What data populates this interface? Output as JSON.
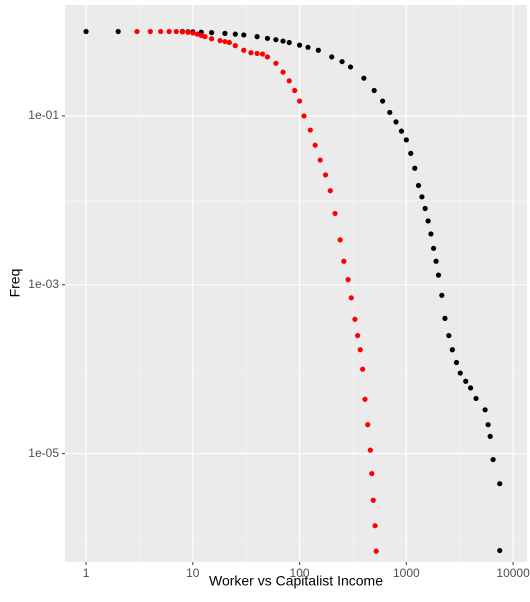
{
  "chart_data": {
    "type": "scatter",
    "x_label": "Worker vs Capitalist Income",
    "y_label": "Freq",
    "x_log": true,
    "y_log": true,
    "grid": true,
    "xlim": [
      0.635,
      13500
    ],
    "ylim": [
      5.2e-07,
      2.06
    ],
    "xticks": [
      1,
      10,
      100,
      1000,
      10000
    ],
    "yticks": [
      {
        "value": 0.1,
        "label": "1e-01"
      },
      {
        "value": 0.001,
        "label": "1e-03"
      },
      {
        "value": 1e-05,
        "label": "1e-05"
      }
    ],
    "series": [
      {
        "color": "#000000",
        "x": [
          1,
          2,
          8,
          9,
          10,
          12,
          15,
          20,
          25,
          30,
          40,
          50,
          60,
          70,
          80,
          100,
          120,
          150,
          200,
          250,
          300,
          400,
          500,
          600,
          700,
          800,
          900,
          1000,
          1100,
          1200,
          1300,
          1400,
          1500,
          1600,
          1700,
          1800,
          1900,
          2000,
          2150,
          2300,
          2500,
          2700,
          2950,
          3200,
          3600,
          4000,
          4500,
          5470,
          5840,
          6100,
          6500,
          7500,
          7500
        ],
        "values": [
          1.0,
          1.0,
          1.0,
          0.995,
          0.99,
          0.98,
          0.97,
          0.95,
          0.93,
          0.91,
          0.87,
          0.83,
          0.8,
          0.77,
          0.74,
          0.69,
          0.65,
          0.6,
          0.5,
          0.44,
          0.38,
          0.28,
          0.2,
          0.15,
          0.11,
          0.085,
          0.066,
          0.052,
          0.036,
          0.024,
          0.015,
          0.011,
          0.008,
          0.0057,
          0.004,
          0.0027,
          0.0019,
          0.0013,
          0.00075,
          0.0004,
          0.00025,
          0.00017,
          0.00012,
          9e-05,
          7.2e-05,
          6e-05,
          4.5e-05,
          3.3e-05,
          2.2e-05,
          1.6e-05,
          8.5e-06,
          4.4e-06,
          7.1e-07
        ]
      },
      {
        "color": "#ff0000",
        "x": [
          3,
          4,
          5,
          6,
          7,
          8,
          9,
          10,
          11,
          12,
          13,
          15,
          18,
          20,
          22,
          25,
          30,
          35,
          40,
          45,
          50,
          60,
          70,
          80,
          90,
          100,
          110,
          126,
          140,
          156,
          175,
          194,
          215,
          240,
          260,
          285,
          305,
          330,
          350,
          370,
          390,
          410,
          435,
          460,
          475,
          490,
          510,
          522
        ],
        "values": [
          1.0,
          1.0,
          1.0,
          1.0,
          1.0,
          0.99,
          0.98,
          0.96,
          0.93,
          0.9,
          0.87,
          0.82,
          0.78,
          0.76,
          0.74,
          0.68,
          0.6,
          0.56,
          0.55,
          0.54,
          0.5,
          0.42,
          0.33,
          0.26,
          0.2,
          0.15,
          0.1,
          0.068,
          0.045,
          0.03,
          0.02,
          0.013,
          0.007,
          0.0034,
          0.0019,
          0.00115,
          0.0007,
          0.00039,
          0.00025,
          0.00017,
          0.0001,
          4.4e-05,
          2.2e-05,
          1.1e-05,
          5.8e-06,
          2.8e-06,
          1.4e-06,
          7e-07
        ]
      }
    ]
  }
}
